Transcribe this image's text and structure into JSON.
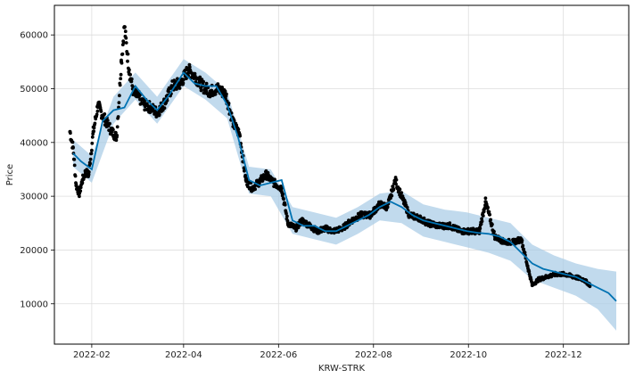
{
  "chart_data": {
    "type": "line",
    "title": "",
    "xlabel": "KRW-STRK",
    "ylabel": "Price",
    "x_ticks": [
      "2022-02",
      "2022-04",
      "2022-06",
      "2022-08",
      "2022-10",
      "2022-12"
    ],
    "x_tick_dates": [
      "2022-02-01",
      "2022-04-01",
      "2022-06-01",
      "2022-08-01",
      "2022-10-01",
      "2022-12-01"
    ],
    "y_ticks": [
      "10000",
      "20000",
      "30000",
      "40000",
      "50000",
      "60000"
    ],
    "y_tick_values": [
      10000,
      20000,
      30000,
      40000,
      50000,
      60000
    ],
    "xlim": [
      "2022-01-08",
      "2023-01-12"
    ],
    "ylim": [
      2500,
      65500
    ],
    "grid": true,
    "colors": {
      "forecast": "#0072B2",
      "band": "#a6cbe6",
      "observed": "#000000",
      "grid": "#dddddd"
    },
    "series": [
      {
        "role": "forecast",
        "x": [
          "2022-01-20",
          "2022-01-25",
          "2022-02-01",
          "2022-02-08",
          "2022-02-15",
          "2022-02-22",
          "2022-03-01",
          "2022-03-08",
          "2022-03-15",
          "2022-03-22",
          "2022-04-01",
          "2022-04-08",
          "2022-04-15",
          "2022-04-22",
          "2022-04-29",
          "2022-05-06",
          "2022-05-13",
          "2022-05-20",
          "2022-05-27",
          "2022-06-03",
          "2022-06-10",
          "2022-06-17",
          "2022-06-24",
          "2022-07-01",
          "2022-07-08",
          "2022-07-15",
          "2022-07-22",
          "2022-07-29",
          "2022-08-05",
          "2022-08-12",
          "2022-08-19",
          "2022-08-26",
          "2022-09-02",
          "2022-09-09",
          "2022-09-16",
          "2022-09-23",
          "2022-09-30",
          "2022-10-07",
          "2022-10-14",
          "2022-10-21",
          "2022-10-28",
          "2022-11-04",
          "2022-11-11",
          "2022-11-18",
          "2022-11-25",
          "2022-12-02",
          "2022-12-09",
          "2022-12-16",
          "2022-12-23",
          "2022-12-30",
          "2023-01-04"
        ],
        "y": [
          38000,
          36500,
          35000,
          44000,
          46000,
          46500,
          50500,
          48000,
          46000,
          48500,
          53000,
          51000,
          50500,
          50500,
          47000,
          41000,
          33000,
          32000,
          32500,
          33000,
          25500,
          24500,
          24500,
          23500,
          23500,
          24500,
          25500,
          26500,
          28000,
          29000,
          28000,
          26500,
          25500,
          25000,
          24500,
          24000,
          23500,
          23200,
          23000,
          22500,
          21500,
          19500,
          17500,
          16500,
          16000,
          15500,
          15000,
          14000,
          13000,
          12000,
          10500
        ]
      },
      {
        "role": "uncertainty",
        "x": [
          "2022-01-20",
          "2022-02-01",
          "2022-02-15",
          "2022-03-01",
          "2022-03-15",
          "2022-04-01",
          "2022-04-15",
          "2022-04-29",
          "2022-05-13",
          "2022-05-27",
          "2022-06-10",
          "2022-06-24",
          "2022-07-08",
          "2022-07-22",
          "2022-08-05",
          "2022-08-19",
          "2022-09-02",
          "2022-09-16",
          "2022-09-30",
          "2022-10-14",
          "2022-10-28",
          "2022-11-11",
          "2022-11-25",
          "2022-12-09",
          "2022-12-23",
          "2023-01-04"
        ],
        "upper": [
          40500,
          37500,
          48500,
          53000,
          48500,
          55500,
          53000,
          49500,
          35500,
          35000,
          28000,
          27000,
          26000,
          28000,
          30500,
          31000,
          28500,
          27500,
          27000,
          26000,
          25000,
          21000,
          19000,
          17500,
          16500,
          16000
        ],
        "lower": [
          35500,
          32500,
          43500,
          48000,
          43500,
          50500,
          48000,
          44500,
          30500,
          30000,
          23000,
          22000,
          21000,
          23000,
          25500,
          25000,
          22500,
          21500,
          20500,
          19500,
          18000,
          14500,
          13000,
          11500,
          9000,
          5000
        ]
      },
      {
        "role": "observed",
        "x": [
          "2022-01-18",
          "2022-01-20",
          "2022-01-22",
          "2022-01-24",
          "2022-01-26",
          "2022-01-28",
          "2022-01-30",
          "2022-02-02",
          "2022-02-05",
          "2022-02-08",
          "2022-02-11",
          "2022-02-14",
          "2022-02-17",
          "2022-02-20",
          "2022-02-22",
          "2022-02-25",
          "2022-02-28",
          "2022-03-03",
          "2022-03-07",
          "2022-03-11",
          "2022-03-15",
          "2022-03-20",
          "2022-03-25",
          "2022-03-30",
          "2022-04-04",
          "2022-04-08",
          "2022-04-13",
          "2022-04-18",
          "2022-04-23",
          "2022-04-28",
          "2022-05-03",
          "2022-05-07",
          "2022-05-11",
          "2022-05-15",
          "2022-05-19",
          "2022-05-24",
          "2022-05-29",
          "2022-06-03",
          "2022-06-07",
          "2022-06-12",
          "2022-06-16",
          "2022-06-21",
          "2022-06-26",
          "2022-07-01",
          "2022-07-06",
          "2022-07-12",
          "2022-07-18",
          "2022-07-24",
          "2022-07-30",
          "2022-08-05",
          "2022-08-10",
          "2022-08-15",
          "2022-08-19",
          "2022-08-24",
          "2022-08-30",
          "2022-09-05",
          "2022-09-12",
          "2022-09-19",
          "2022-09-26",
          "2022-10-03",
          "2022-10-08",
          "2022-10-12",
          "2022-10-18",
          "2022-10-24",
          "2022-10-30",
          "2022-11-04",
          "2022-11-08",
          "2022-11-11",
          "2022-11-15",
          "2022-11-20",
          "2022-11-26",
          "2022-12-02",
          "2022-12-08",
          "2022-12-14",
          "2022-12-18"
        ],
        "y": [
          42000,
          39000,
          32000,
          30500,
          33000,
          34500,
          34000,
          42000,
          47000,
          45000,
          43500,
          42000,
          41000,
          55000,
          61500,
          53500,
          49000,
          48500,
          47000,
          46500,
          45500,
          47500,
          50500,
          51000,
          53500,
          52500,
          50500,
          49500,
          50000,
          49000,
          43500,
          41500,
          33000,
          31500,
          32500,
          34000,
          32500,
          31500,
          25000,
          24000,
          25500,
          24500,
          23500,
          24000,
          23500,
          24000,
          25500,
          26500,
          26500,
          28500,
          28000,
          33000,
          30000,
          26500,
          26000,
          25000,
          24500,
          24500,
          23500,
          23500,
          23500,
          29000,
          22500,
          21500,
          21500,
          22000,
          17000,
          13500,
          14500,
          15000,
          15500,
          15500,
          15000,
          14500,
          13500
        ]
      }
    ]
  }
}
